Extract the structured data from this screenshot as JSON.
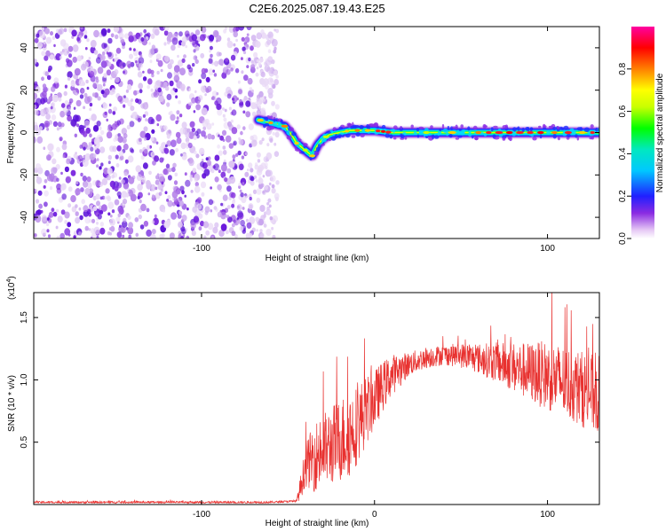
{
  "title": "C2E6.2025.087.19.43.E25",
  "chart_data": [
    {
      "type": "heatmap",
      "xlabel": "Height of straight line (km)",
      "ylabel": "Frequency (Hz)",
      "xlim": [
        -197,
        130
      ],
      "ylim": [
        -50,
        50
      ],
      "x_ticks": [
        -100,
        0,
        100
      ],
      "x_tick_labels": [
        "-100",
        "",
        "100"
      ],
      "y_ticks": [
        -40,
        -20,
        0,
        20,
        40
      ],
      "y_tick_labels": [
        "-40",
        "-20",
        "0",
        "20",
        "40"
      ],
      "noise_region_x": [
        -197,
        -62
      ],
      "ridge": [
        [
          -67,
          6
        ],
        [
          -62,
          5
        ],
        [
          -57,
          4
        ],
        [
          -52,
          3
        ],
        [
          -48,
          -1
        ],
        [
          -45,
          -5
        ],
        [
          -42,
          -7
        ],
        [
          -39,
          -9
        ],
        [
          -36,
          -11
        ],
        [
          -33,
          -6
        ],
        [
          -30,
          -3
        ],
        [
          -26,
          -1
        ],
        [
          -20,
          0
        ],
        [
          -14,
          1
        ],
        [
          -8,
          1
        ],
        [
          0,
          1
        ],
        [
          10,
          0
        ],
        [
          25,
          0
        ],
        [
          45,
          0
        ],
        [
          65,
          0
        ],
        [
          85,
          0
        ],
        [
          105,
          0
        ],
        [
          130,
          0
        ]
      ],
      "colorbar": {
        "label": "Normalized spectral amplitude",
        "range": [
          0,
          1
        ],
        "ticks": [
          0.0,
          0.2,
          0.4,
          0.6,
          0.8
        ],
        "tick_labels": [
          "0.0",
          "0.2",
          "0.4",
          "0.6",
          "0.8"
        ]
      },
      "grid": false
    },
    {
      "type": "line",
      "xlabel": "Height of straight line (km)",
      "ylabel": "SNR (10 * v/v)",
      "y_multiplier_label": "(x10",
      "y_multiplier_exp": "4",
      "y_multiplier_close": ")",
      "xlim": [
        -197,
        130
      ],
      "ylim": [
        0,
        1.7
      ],
      "x_ticks": [
        -100,
        0,
        100
      ],
      "x_tick_labels": [
        "-100",
        "0",
        "100"
      ],
      "y_ticks": [
        0.5,
        1.0,
        1.5
      ],
      "y_tick_labels": [
        "0.5",
        "1.0",
        "1.5"
      ],
      "series": [
        {
          "color": "#e8312f",
          "envelope": [
            [
              -197,
              0.02
            ],
            [
              -60,
              0.02
            ],
            [
              -45,
              0.03
            ],
            [
              -43,
              0.15
            ],
            [
              -40,
              0.35
            ],
            [
              -35,
              0.45
            ],
            [
              -30,
              0.5
            ],
            [
              -25,
              0.55
            ],
            [
              -20,
              0.6
            ],
            [
              -15,
              0.65
            ],
            [
              -10,
              0.72
            ],
            [
              -5,
              0.82
            ],
            [
              0,
              0.9
            ],
            [
              5,
              1.0
            ],
            [
              10,
              1.08
            ],
            [
              20,
              1.15
            ],
            [
              30,
              1.2
            ],
            [
              40,
              1.22
            ],
            [
              50,
              1.22
            ],
            [
              60,
              1.2
            ],
            [
              70,
              1.18
            ],
            [
              80,
              1.15
            ],
            [
              90,
              1.12
            ],
            [
              100,
              1.1
            ],
            [
              110,
              1.05
            ],
            [
              120,
              1.0
            ],
            [
              130,
              0.95
            ]
          ],
          "spread": [
            [
              -197,
              0.01
            ],
            [
              -45,
              0.01
            ],
            [
              -43,
              0.12
            ],
            [
              -35,
              0.35
            ],
            [
              -25,
              0.4
            ],
            [
              -15,
              0.45
            ],
            [
              -5,
              0.35
            ],
            [
              5,
              0.25
            ],
            [
              20,
              0.12
            ],
            [
              40,
              0.1
            ],
            [
              60,
              0.15
            ],
            [
              80,
              0.25
            ],
            [
              100,
              0.35
            ],
            [
              130,
              0.4
            ]
          ]
        }
      ],
      "grid": false
    }
  ]
}
